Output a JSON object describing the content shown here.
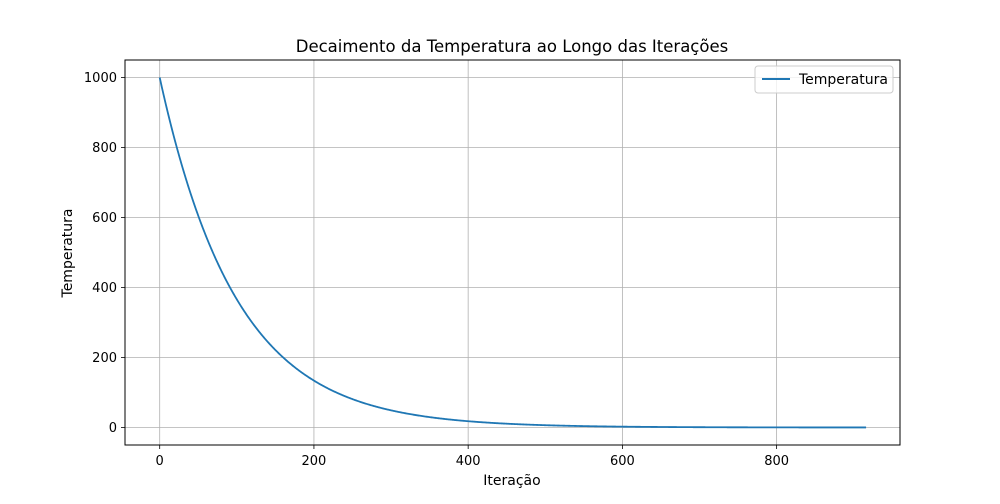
{
  "chart_data": {
    "type": "line",
    "title": "Decaimento da Temperatura ao Longo das Iterações",
    "xlabel": "Iteração",
    "ylabel": "Temperatura",
    "xlim": [
      -45,
      960
    ],
    "ylim": [
      -50,
      1050
    ],
    "xticks": [
      0,
      200,
      400,
      600,
      800
    ],
    "yticks": [
      0,
      200,
      400,
      600,
      800,
      1000
    ],
    "grid": true,
    "legend_position": "top-right",
    "series": [
      {
        "name": "Temperatura",
        "color": "#1f77b4",
        "model": "exponential-decay",
        "initial_value": 1000,
        "decay_rate": 0.99,
        "x_start": 0,
        "x_end": 916
      }
    ]
  }
}
